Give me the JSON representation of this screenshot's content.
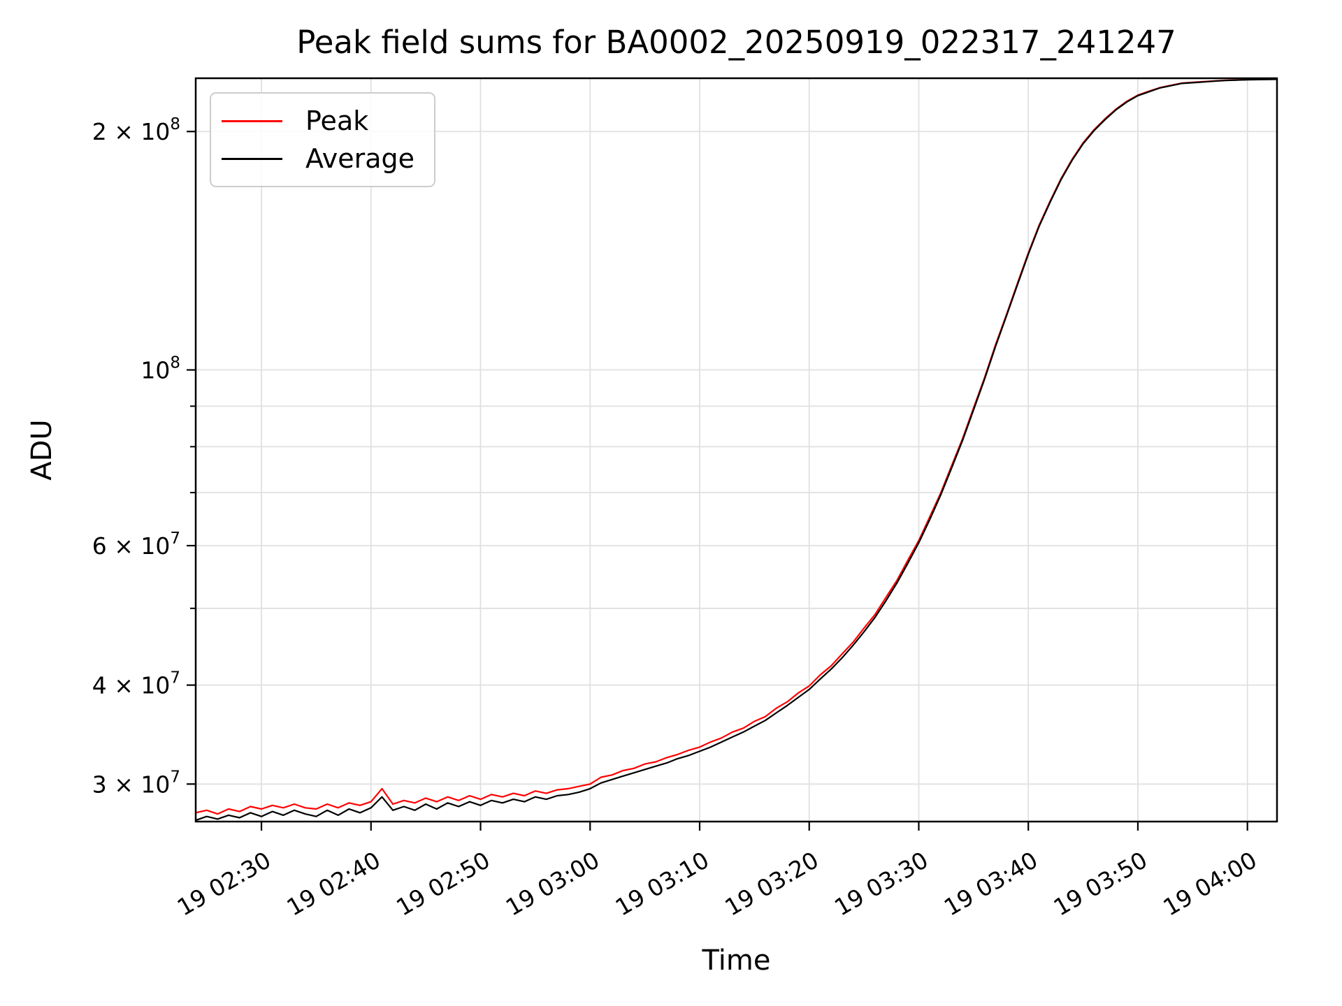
{
  "chart_data": {
    "type": "line",
    "title": "Peak field sums for BA0002_20250919_022317_241247",
    "xlabel": "Time",
    "ylabel": "ADU",
    "grid": true,
    "legend_position": "upper left",
    "x_axis": {
      "unit": "minutes after 00:00 on day 19",
      "xlim": [
        144.0,
        242.7
      ],
      "ticks": [
        {
          "minute": 150,
          "label": "19 02:30"
        },
        {
          "minute": 160,
          "label": "19 02:40"
        },
        {
          "minute": 170,
          "label": "19 02:50"
        },
        {
          "minute": 180,
          "label": "19 03:00"
        },
        {
          "minute": 190,
          "label": "19 03:10"
        },
        {
          "minute": 200,
          "label": "19 03:20"
        },
        {
          "minute": 210,
          "label": "19 03:30"
        },
        {
          "minute": 220,
          "label": "19 03:40"
        },
        {
          "minute": 230,
          "label": "19 03:50"
        },
        {
          "minute": 240,
          "label": "19 04:00"
        }
      ]
    },
    "y_axis": {
      "scale": "log",
      "unit": "ADU",
      "ylim": [
        26900000,
        233500000
      ],
      "major_ticks": [
        {
          "value": 200000000,
          "mantissa": "2 × 10",
          "exponent": "8"
        },
        {
          "value": 100000000,
          "mantissa": "10",
          "exponent": "8"
        },
        {
          "value": 60000000,
          "mantissa": "6 × 10",
          "exponent": "7"
        },
        {
          "value": 40000000,
          "mantissa": "4 × 10",
          "exponent": "7"
        },
        {
          "value": 30000000,
          "mantissa": "3 × 10",
          "exponent": "7"
        }
      ],
      "minor_ticks": [
        90000000,
        80000000,
        70000000,
        50000000
      ]
    },
    "x_minutes": [
      144,
      145,
      146,
      147,
      148,
      149,
      150,
      151,
      152,
      153,
      154,
      155,
      156,
      157,
      158,
      159,
      160,
      161,
      162,
      163,
      164,
      165,
      166,
      167,
      168,
      169,
      170,
      171,
      172,
      173,
      174,
      175,
      176,
      177,
      178,
      179,
      180,
      181,
      182,
      183,
      184,
      185,
      186,
      187,
      188,
      189,
      190,
      191,
      192,
      193,
      194,
      195,
      196,
      197,
      198,
      199,
      200,
      201,
      202,
      203,
      204,
      205,
      206,
      207,
      208,
      209,
      210,
      211,
      212,
      213,
      214,
      215,
      216,
      217,
      218,
      219,
      220,
      221,
      222,
      223,
      224,
      225,
      226,
      227,
      228,
      229,
      230,
      231,
      232,
      233,
      234,
      235,
      236,
      237,
      238,
      239,
      240,
      241,
      242,
      242.7
    ],
    "value_scale": 10000000,
    "series": [
      {
        "name": "Peak",
        "color": "#ff0000",
        "values": [
          2.76,
          2.78,
          2.75,
          2.79,
          2.77,
          2.81,
          2.79,
          2.82,
          2.8,
          2.83,
          2.8,
          2.79,
          2.83,
          2.8,
          2.84,
          2.82,
          2.85,
          2.96,
          2.83,
          2.86,
          2.84,
          2.88,
          2.85,
          2.89,
          2.86,
          2.9,
          2.87,
          2.91,
          2.89,
          2.92,
          2.9,
          2.94,
          2.92,
          2.95,
          2.96,
          2.98,
          3.0,
          3.06,
          3.08,
          3.12,
          3.14,
          3.18,
          3.2,
          3.24,
          3.27,
          3.31,
          3.34,
          3.39,
          3.43,
          3.49,
          3.53,
          3.6,
          3.65,
          3.74,
          3.81,
          3.91,
          3.99,
          4.12,
          4.23,
          4.38,
          4.53,
          4.72,
          4.91,
          5.16,
          5.42,
          5.75,
          6.09,
          6.52,
          6.99,
          7.57,
          8.19,
          8.95,
          9.77,
          10.75,
          11.74,
          12.85,
          14.05,
          15.25,
          16.35,
          17.45,
          18.45,
          19.35,
          20.1,
          20.75,
          21.34,
          21.84,
          22.23,
          22.48,
          22.72,
          22.87,
          23.02,
          23.07,
          23.12,
          23.17,
          23.21,
          23.23,
          23.26,
          23.27,
          23.28,
          23.29
        ]
      },
      {
        "name": "Average",
        "color": "#000000",
        "values": [
          2.7,
          2.73,
          2.71,
          2.74,
          2.72,
          2.76,
          2.73,
          2.77,
          2.74,
          2.78,
          2.75,
          2.73,
          2.78,
          2.74,
          2.79,
          2.76,
          2.8,
          2.89,
          2.78,
          2.81,
          2.78,
          2.83,
          2.79,
          2.84,
          2.81,
          2.85,
          2.82,
          2.86,
          2.84,
          2.87,
          2.85,
          2.89,
          2.87,
          2.9,
          2.91,
          2.93,
          2.96,
          3.01,
          3.04,
          3.07,
          3.1,
          3.13,
          3.16,
          3.19,
          3.23,
          3.26,
          3.3,
          3.34,
          3.39,
          3.44,
          3.49,
          3.55,
          3.61,
          3.69,
          3.77,
          3.86,
          3.95,
          4.07,
          4.19,
          4.33,
          4.49,
          4.67,
          4.87,
          5.11,
          5.38,
          5.7,
          6.05,
          6.47,
          6.95,
          7.52,
          8.15,
          8.9,
          9.73,
          10.7,
          11.7,
          12.8,
          14.0,
          15.2,
          16.3,
          17.4,
          18.4,
          19.3,
          20.05,
          20.7,
          21.3,
          21.8,
          22.2,
          22.45,
          22.7,
          22.85,
          23.0,
          23.05,
          23.1,
          23.15,
          23.2,
          23.22,
          23.25,
          23.26,
          23.27,
          23.28
        ]
      }
    ]
  }
}
